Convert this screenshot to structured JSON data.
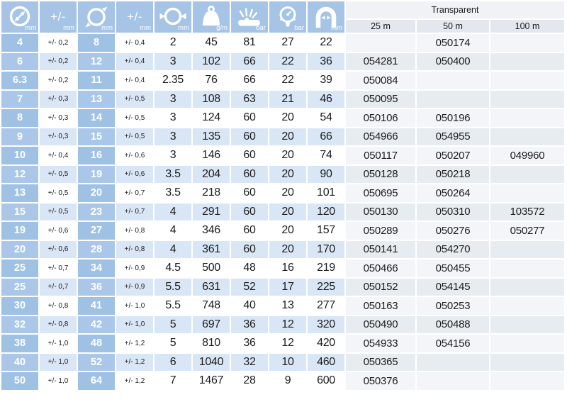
{
  "header": {
    "product_group": "Transparent",
    "lengths": [
      "25 m",
      "50 m",
      "100 m"
    ],
    "columns": [
      {
        "icon": "inner-diameter-icon",
        "unit": "mm"
      },
      {
        "icon": "plus-minus-icon",
        "label": "+/-",
        "unit": "mm"
      },
      {
        "icon": "outer-diameter-icon",
        "unit": "mm"
      },
      {
        "icon": "plus-minus-icon",
        "label": "+/-",
        "unit": "mm"
      },
      {
        "icon": "wall-thickness-icon",
        "unit": "mm"
      },
      {
        "icon": "weight-icon",
        "unit": "g/m"
      },
      {
        "icon": "burst-pressure-icon",
        "unit": "bar"
      },
      {
        "icon": "pressure-gauge-icon",
        "unit": "bar"
      },
      {
        "icon": "bend-radius-icon",
        "unit": "mm"
      }
    ]
  },
  "rows": [
    [
      "4",
      "+/- 0,2",
      "8",
      "+/- 0,4",
      "2",
      "45",
      "81",
      "27",
      "22",
      "",
      "050174",
      ""
    ],
    [
      "6",
      "+/- 0,2",
      "12",
      "+/- 0,4",
      "3",
      "102",
      "66",
      "22",
      "36",
      "054281",
      "050400",
      ""
    ],
    [
      "6.3",
      "+/- 0,2",
      "11",
      "+/- 0,4",
      "2.35",
      "76",
      "66",
      "22",
      "39",
      "050084",
      "",
      ""
    ],
    [
      "7",
      "+/- 0,3",
      "13",
      "+/- 0,5",
      "3",
      "108",
      "63",
      "21",
      "46",
      "050095",
      "",
      ""
    ],
    [
      "8",
      "+/- 0,3",
      "14",
      "+/- 0,5",
      "3",
      "124",
      "60",
      "20",
      "54",
      "050106",
      "050196",
      ""
    ],
    [
      "9",
      "+/- 0,3",
      "15",
      "+/- 0,5",
      "3",
      "135",
      "60",
      "20",
      "66",
      "054966",
      "054955",
      ""
    ],
    [
      "10",
      "+/- 0,4",
      "16",
      "+/- 0,6",
      "3",
      "146",
      "60",
      "20",
      "74",
      "050117",
      "050207",
      "049960"
    ],
    [
      "12",
      "+/- 0,5",
      "19",
      "+/- 0,6",
      "3.5",
      "204",
      "60",
      "20",
      "90",
      "050128",
      "050218",
      ""
    ],
    [
      "13",
      "+/- 0,5",
      "20",
      "+/- 0,7",
      "3.5",
      "218",
      "60",
      "20",
      "101",
      "050695",
      "050264",
      ""
    ],
    [
      "15",
      "+/- 0,5",
      "23",
      "+/- 0,7",
      "4",
      "291",
      "60",
      "20",
      "120",
      "050130",
      "050310",
      "103572"
    ],
    [
      "19",
      "+/- 0,6",
      "27",
      "+/- 0,8",
      "4",
      "346",
      "60",
      "20",
      "157",
      "050289",
      "050276",
      "050277"
    ],
    [
      "20",
      "+/- 0,6",
      "28",
      "+/- 0,8",
      "4",
      "361",
      "60",
      "20",
      "170",
      "050141",
      "054270",
      ""
    ],
    [
      "25",
      "+/- 0,7",
      "34",
      "+/- 0,9",
      "4.5",
      "500",
      "48",
      "16",
      "219",
      "050466",
      "050455",
      ""
    ],
    [
      "25",
      "+/- 0,7",
      "36",
      "+/- 0,9",
      "5.5",
      "631",
      "52",
      "17",
      "225",
      "050152",
      "054145",
      ""
    ],
    [
      "30",
      "+/- 0,8",
      "41",
      "+/- 1,0",
      "5.5",
      "748",
      "40",
      "13",
      "277",
      "050163",
      "050253",
      ""
    ],
    [
      "32",
      "+/- 0,8",
      "42",
      "+/- 1,0",
      "5",
      "697",
      "36",
      "12",
      "320",
      "050490",
      "050488",
      ""
    ],
    [
      "38",
      "+/- 1,0",
      "48",
      "+/- 1,2",
      "5",
      "810",
      "36",
      "12",
      "420",
      "054933",
      "054156",
      ""
    ],
    [
      "40",
      "+/- 1,0",
      "52",
      "+/- 1,2",
      "6",
      "1040",
      "32",
      "10",
      "460",
      "050365",
      "",
      ""
    ],
    [
      "50",
      "+/- 1,0",
      "64",
      "+/- 1,2",
      "7",
      "1467",
      "28",
      "9",
      "600",
      "050376",
      "",
      ""
    ]
  ],
  "colors": {
    "header_blue": "#a5c4e6",
    "id_column_blue": "#9fc1e4",
    "id_column_blue_alt": "#aac7e9",
    "row_stripe_blue": "#d9e6f5",
    "code_stripe_gray": "#e7ecf1",
    "group_header_bg": "#f0f2f6",
    "length_header_bg": "#e3e8ee",
    "text_dark": "#1c1c1c",
    "text_white": "#ffffff"
  }
}
